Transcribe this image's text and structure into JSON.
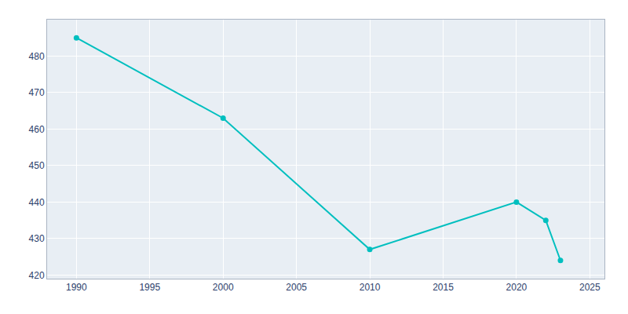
{
  "chart_data": {
    "type": "line",
    "x": [
      1990,
      2000,
      2010,
      2020,
      2022,
      2023
    ],
    "values": [
      485,
      463,
      427,
      440,
      435,
      424
    ],
    "color": "#00BFBF",
    "marker": "circle",
    "xlim": [
      1988,
      2026
    ],
    "xticks": [
      1990,
      1995,
      2000,
      2005,
      2010,
      2015,
      2020,
      2025
    ],
    "ylim": [
      419,
      490
    ],
    "yticks": [
      420,
      430,
      440,
      450,
      460,
      470,
      480
    ],
    "grid": true
  }
}
